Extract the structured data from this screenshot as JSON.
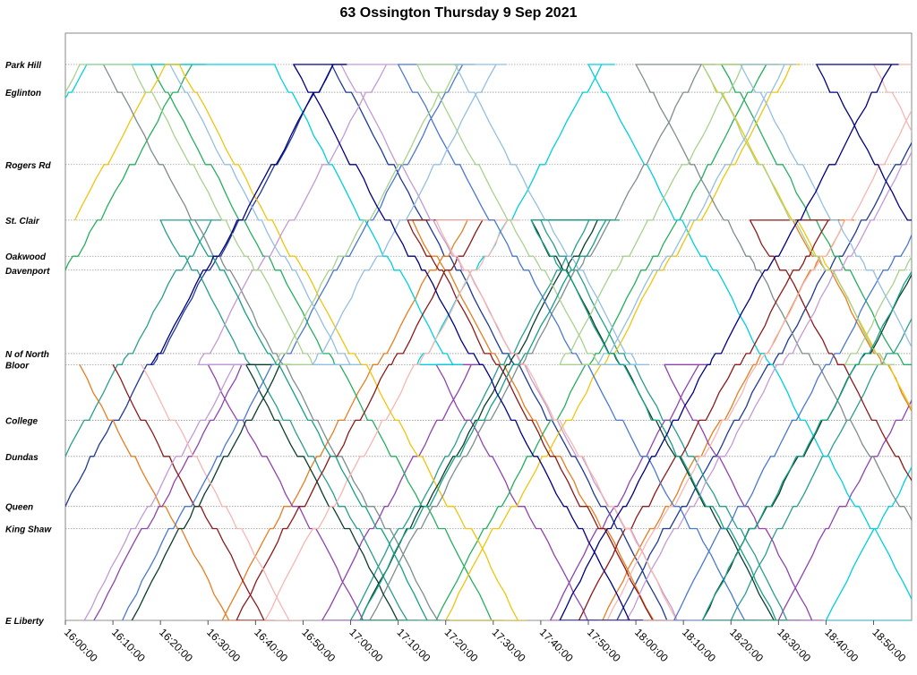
{
  "chart_data": {
    "type": "line",
    "title": "63 Ossington Thursday 9 Sep 2021",
    "xlabel": "",
    "ylabel": "",
    "x_axis": {
      "min": "16:00:00",
      "max": "18:58:00",
      "ticks": [
        "16:00:00",
        "16:10:00",
        "16:20:00",
        "16:30:00",
        "16:40:00",
        "16:50:00",
        "17:00:00",
        "17:10:00",
        "17:20:00",
        "17:30:00",
        "17:40:00",
        "17:50:00",
        "18:00:00",
        "18:10:00",
        "18:20:00",
        "18:30:00",
        "18:40:00",
        "18:50:00"
      ]
    },
    "y_axis": {
      "stops": [
        {
          "name": "Park Hill",
          "pos": 100
        },
        {
          "name": "Eglinton",
          "pos": 95
        },
        {
          "name": "Rogers Rd",
          "pos": 82
        },
        {
          "name": "St. Clair",
          "pos": 72
        },
        {
          "name": "Oakwood",
          "pos": 65.5
        },
        {
          "name": "Davenport",
          "pos": 63
        },
        {
          "name": "N of North",
          "pos": 48
        },
        {
          "name": "Bloor",
          "pos": 46
        },
        {
          "name": "College",
          "pos": 36
        },
        {
          "name": "Dundas",
          "pos": 29.5
        },
        {
          "name": "Queen",
          "pos": 20.5
        },
        {
          "name": "King Shaw",
          "pos": 16.5
        },
        {
          "name": "E Liberty",
          "pos": 0
        }
      ]
    },
    "grid": true,
    "legend": "none",
    "series": [
      {
        "color": "#1f3a93",
        "trips": [
          {
            "start": "16:00:00",
            "dir": "N",
            "from": 20.5,
            "to": 100
          },
          {
            "start": "16:56:00",
            "dir": "S",
            "from": 100,
            "to": 0
          },
          {
            "start": "17:56:00",
            "dir": "N",
            "from": 0,
            "to": 100
          }
        ]
      },
      {
        "color": "#e67e22",
        "trips": [
          {
            "start": "16:03:00",
            "dir": "S",
            "from": 46,
            "to": 0
          },
          {
            "start": "16:33:00",
            "dir": "N",
            "from": 0,
            "to": 72
          },
          {
            "start": "17:13:00",
            "dir": "S",
            "from": 72,
            "to": 0
          },
          {
            "start": "17:53:00",
            "dir": "N",
            "from": 0,
            "to": 72
          },
          {
            "start": "18:33:00",
            "dir": "S",
            "from": 72,
            "to": 0
          }
        ]
      },
      {
        "color": "#2a9d8f",
        "trips": [
          {
            "start": "16:00:00",
            "dir": "N",
            "from": 29.5,
            "to": 72
          },
          {
            "start": "16:20:00",
            "dir": "S",
            "from": 72,
            "to": 0
          },
          {
            "start": "17:00:00",
            "dir": "N",
            "from": 0,
            "to": 72
          },
          {
            "start": "17:40:00",
            "dir": "S",
            "from": 72,
            "to": 0
          },
          {
            "start": "18:20:00",
            "dir": "N",
            "from": 0,
            "to": 72
          }
        ]
      },
      {
        "color": "#8e44ad",
        "trips": [
          {
            "start": "16:06:00",
            "dir": "N",
            "from": 0,
            "to": 46
          },
          {
            "start": "16:30:00",
            "dir": "S",
            "from": 46,
            "to": 0
          },
          {
            "start": "16:54:00",
            "dir": "N",
            "from": 0,
            "to": 46
          },
          {
            "start": "17:18:00",
            "dir": "S",
            "from": 46,
            "to": 0
          },
          {
            "start": "17:42:00",
            "dir": "N",
            "from": 0,
            "to": 46
          },
          {
            "start": "18:06:00",
            "dir": "S",
            "from": 46,
            "to": 0
          },
          {
            "start": "18:30:00",
            "dir": "N",
            "from": 0,
            "to": 46
          }
        ]
      },
      {
        "color": "#27ae60",
        "trips": [
          {
            "start": "16:00:00",
            "dir": "N",
            "from": 63,
            "to": 100
          },
          {
            "start": "16:18:00",
            "dir": "S",
            "from": 100,
            "to": 0
          },
          {
            "start": "17:18:00",
            "dir": "N",
            "from": 0,
            "to": 100
          },
          {
            "start": "18:18:00",
            "dir": "S",
            "from": 100,
            "to": 46
          }
        ]
      },
      {
        "color": "#00cfe0",
        "trips": [
          {
            "start": "16:00:00",
            "dir": "N",
            "from": 94,
            "to": 100
          },
          {
            "start": "16:44:00",
            "dir": "S",
            "from": 100,
            "to": 46
          },
          {
            "start": "17:14:00",
            "dir": "N",
            "from": 46,
            "to": 100
          },
          {
            "start": "17:50:00",
            "dir": "S",
            "from": 100,
            "to": 0
          },
          {
            "start": "18:40:00",
            "dir": "N",
            "from": 0,
            "to": 46
          }
        ]
      },
      {
        "color": "#f1c40f",
        "trips": [
          {
            "start": "16:02:00",
            "dir": "N",
            "from": 72,
            "to": 100
          },
          {
            "start": "16:24:00",
            "dir": "S",
            "from": 100,
            "to": 0
          },
          {
            "start": "17:20:00",
            "dir": "N",
            "from": 0,
            "to": 100
          },
          {
            "start": "18:14:00",
            "dir": "S",
            "from": 100,
            "to": 0
          }
        ]
      },
      {
        "color": "#7f8c8d",
        "trips": [
          {
            "start": "16:08:00",
            "dir": "S",
            "from": 100,
            "to": 0
          },
          {
            "start": "17:04:00",
            "dir": "N",
            "from": 0,
            "to": 100
          },
          {
            "start": "18:00:00",
            "dir": "S",
            "from": 100,
            "to": 0
          }
        ]
      },
      {
        "color": "#8b1a1a",
        "trips": [
          {
            "start": "16:10:00",
            "dir": "S",
            "from": 46,
            "to": 0
          },
          {
            "start": "16:36:00",
            "dir": "N",
            "from": 0,
            "to": 72
          },
          {
            "start": "17:12:00",
            "dir": "S",
            "from": 72,
            "to": 0
          },
          {
            "start": "17:48:00",
            "dir": "N",
            "from": 0,
            "to": 72
          },
          {
            "start": "18:24:00",
            "dir": "S",
            "from": 72,
            "to": 0
          }
        ]
      },
      {
        "color": "#0b3d2e",
        "trips": [
          {
            "start": "16:14:00",
            "dir": "N",
            "from": 0,
            "to": 46
          },
          {
            "start": "16:38:00",
            "dir": "S",
            "from": 46,
            "to": 0
          },
          {
            "start": "17:02:00",
            "dir": "N",
            "from": 0,
            "to": 72
          },
          {
            "start": "17:38:00",
            "dir": "S",
            "from": 72,
            "to": 0
          },
          {
            "start": "18:14:00",
            "dir": "N",
            "from": 0,
            "to": 72
          }
        ]
      },
      {
        "color": "#c39bd3",
        "trips": [
          {
            "start": "16:04:00",
            "dir": "N",
            "from": 0,
            "to": 46
          },
          {
            "start": "16:28:00",
            "dir": "N",
            "from": 46,
            "to": 100
          },
          {
            "start": "16:58:00",
            "dir": "S",
            "from": 100,
            "to": 0
          },
          {
            "start": "17:58:00",
            "dir": "N",
            "from": 0,
            "to": 100
          }
        ]
      },
      {
        "color": "#f5b7b1",
        "trips": [
          {
            "start": "16:16:00",
            "dir": "S",
            "from": 46,
            "to": 0
          },
          {
            "start": "16:42:00",
            "dir": "N",
            "from": 0,
            "to": 72
          },
          {
            "start": "17:18:00",
            "dir": "S",
            "from": 72,
            "to": 0
          },
          {
            "start": "17:54:00",
            "dir": "N",
            "from": 0,
            "to": 100
          },
          {
            "start": "18:50:00",
            "dir": "S",
            "from": 100,
            "to": 46
          }
        ]
      },
      {
        "color": "#4a78d0",
        "trips": [
          {
            "start": "16:12:00",
            "dir": "N",
            "from": 0,
            "to": 100
          },
          {
            "start": "17:10:00",
            "dir": "S",
            "from": 100,
            "to": 0
          },
          {
            "start": "18:08:00",
            "dir": "N",
            "from": 0,
            "to": 100
          }
        ]
      },
      {
        "color": "#a9d18e",
        "trips": [
          {
            "start": "16:00:00",
            "dir": "N",
            "from": 95,
            "to": 100
          },
          {
            "start": "16:14:00",
            "dir": "S",
            "from": 100,
            "to": 46
          },
          {
            "start": "16:44:00",
            "dir": "N",
            "from": 46,
            "to": 100
          },
          {
            "start": "17:14:00",
            "dir": "S",
            "from": 100,
            "to": 46
          },
          {
            "start": "17:44:00",
            "dir": "N",
            "from": 46,
            "to": 100
          },
          {
            "start": "18:14:00",
            "dir": "S",
            "from": 100,
            "to": 46
          },
          {
            "start": "18:44:00",
            "dir": "N",
            "from": 46,
            "to": 100
          }
        ]
      },
      {
        "color": "#94bfe0",
        "trips": [
          {
            "start": "16:22:00",
            "dir": "S",
            "from": 100,
            "to": 46
          },
          {
            "start": "16:52:00",
            "dir": "N",
            "from": 46,
            "to": 100
          },
          {
            "start": "17:22:00",
            "dir": "S",
            "from": 100,
            "to": 46
          },
          {
            "start": "17:52:00",
            "dir": "N",
            "from": 46,
            "to": 100
          },
          {
            "start": "18:22:00",
            "dir": "S",
            "from": 100,
            "to": 46
          }
        ]
      },
      {
        "color": "#16a085",
        "trips": [
          {
            "start": "16:26:00",
            "dir": "S",
            "from": 72,
            "to": 0
          },
          {
            "start": "17:02:00",
            "dir": "N",
            "from": 0,
            "to": 72
          },
          {
            "start": "17:38:00",
            "dir": "S",
            "from": 72,
            "to": 0
          },
          {
            "start": "18:14:00",
            "dir": "N",
            "from": 0,
            "to": 100
          }
        ]
      },
      {
        "color": "#000080",
        "trips": [
          {
            "start": "16:18:00",
            "dir": "N",
            "from": 46,
            "to": 100
          },
          {
            "start": "16:48:00",
            "dir": "S",
            "from": 100,
            "to": 0
          },
          {
            "start": "17:44:00",
            "dir": "N",
            "from": 0,
            "to": 100
          },
          {
            "start": "18:38:00",
            "dir": "S",
            "from": 100,
            "to": 46
          }
        ]
      }
    ]
  }
}
